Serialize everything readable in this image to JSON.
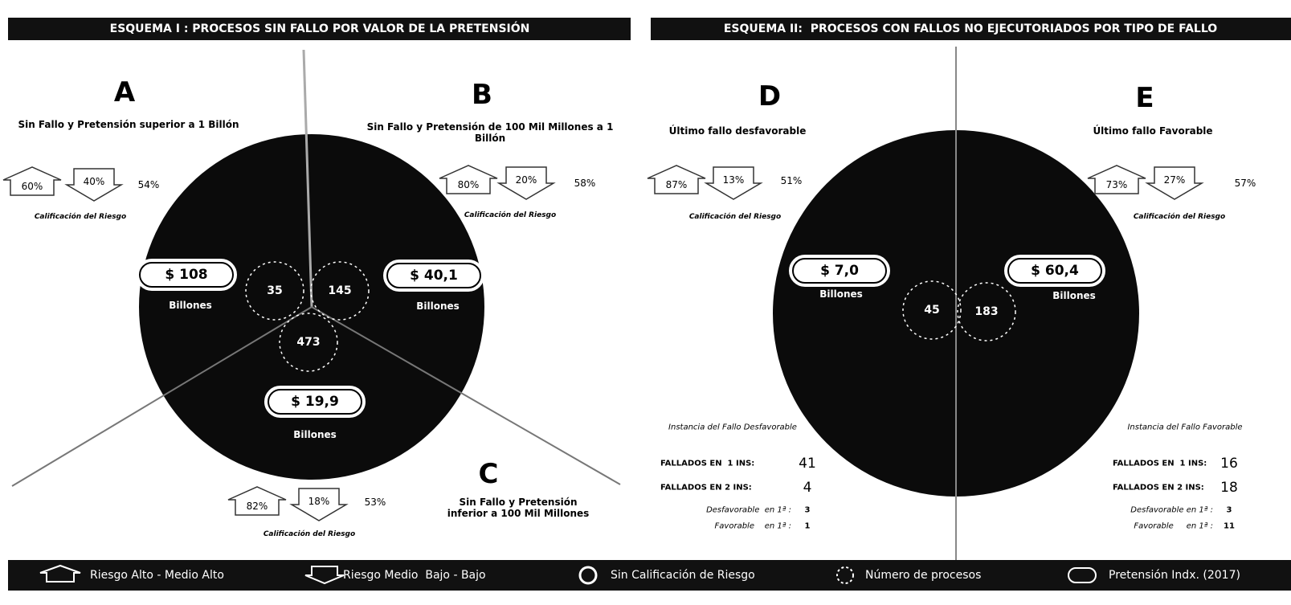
{
  "schemes": [
    {
      "title": "ESQUEMA I : PROCESOS SIN FALLO POR VALOR DE LA PRETENSIÓN",
      "sections": [
        {
          "letter": "A",
          "description": "Sin Fallo y Pretensión superior a  1 Billón",
          "risk": {
            "high": "60%",
            "low": "40%",
            "total": "54%",
            "caption": "Calificación del Riesgo"
          },
          "amount": "$ 108",
          "unit": "Billones",
          "count": "35"
        },
        {
          "letter": "B",
          "description": "Sin Fallo y Pretensión de 100 Mil Millones a 1 Billón",
          "risk": {
            "high": "80%",
            "low": "20%",
            "total": "58%",
            "caption": "Calificación del Riesgo"
          },
          "amount": "$ 40,1",
          "unit": "Billones",
          "count": "145"
        },
        {
          "letter": "C",
          "description": "Sin Fallo y Pretensión inferior a 100 Mil Millones",
          "risk": {
            "high": "82%",
            "low": "18%",
            "total": "53%",
            "caption": "Calificación del Riesgo"
          },
          "amount": "$ 19,9",
          "unit": "Billones",
          "count": "473"
        }
      ]
    },
    {
      "title": "ESQUEMA II:  PROCESOS CON FALLOS NO EJECUTORIADOS POR TIPO DE FALLO",
      "sections": [
        {
          "letter": "D",
          "description": "Último fallo desfavorable",
          "risk": {
            "high": "87%",
            "low": "13%",
            "total": "51%",
            "caption": "Calificación del Riesgo"
          },
          "amount": "$ 7,0",
          "unit": "Billones",
          "count": "45",
          "instance": {
            "title": "Instancia del Fallo Desfavorable",
            "rows": [
              {
                "label": "FALLADOS EN  1 INS:",
                "value": "41"
              },
              {
                "label": "FALLADOS EN 2 INS:",
                "value": "4"
              },
              {
                "label": "Desfavorable  en 1ª :",
                "value": "3"
              },
              {
                "label": "Favorable    en 1ª :",
                "value": "1"
              }
            ]
          }
        },
        {
          "letter": "E",
          "description": "Último fallo Favorable",
          "risk": {
            "high": "73%",
            "low": "27%",
            "total": "57%",
            "caption": "Calificación del Riesgo"
          },
          "amount": "$ 60,4",
          "unit": "Billones",
          "count": "183",
          "instance": {
            "title": "Instancia del Fallo Favorable",
            "rows": [
              {
                "label": "FALLADOS EN  1 INS:",
                "value": "16"
              },
              {
                "label": "FALLADOS EN 2 INS:",
                "value": "18"
              },
              {
                "label": "Desfavorable en 1ª :",
                "value": "3"
              },
              {
                "label": "Favorable     en 1ª :",
                "value": "11"
              }
            ]
          }
        }
      ]
    }
  ],
  "legend": [
    "Riesgo Alto - Medio Alto",
    "Riesgo Medio  Bajo - Bajo",
    "Sin Calificación de Riesgo",
    "Número de procesos",
    "Pretensión Indx. (2017)"
  ]
}
